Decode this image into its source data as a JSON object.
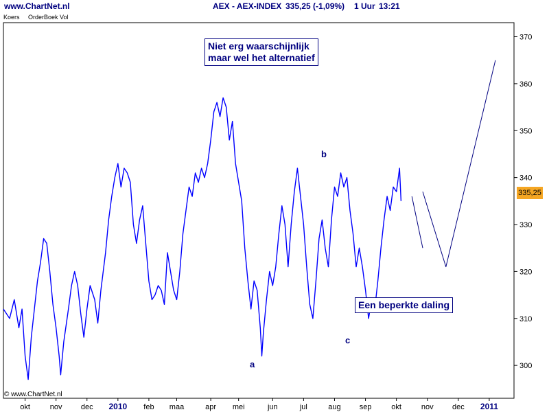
{
  "header": {
    "site": "www.ChartNet.nl",
    "instrument": "AEX - AEX-INDEX",
    "quote": "335,25 (-1,09%)",
    "interval": "1 Uur",
    "time": "13:21"
  },
  "tabs": [
    "Koers",
    "OrderBoek Vol"
  ],
  "copyright": "© www.ChartNet.nl",
  "annotations": {
    "box_alt": [
      "Niet erg waarschijnlijk",
      "maar wel het alternatief"
    ],
    "box_main": "Een beperkte daling",
    "wave_a": "a",
    "wave_b": "b",
    "wave_c": "c"
  },
  "price_tag": "335,25",
  "colors": {
    "series": "#0000ff",
    "text": "#000080",
    "price_tag": "#f5a623"
  },
  "chart_data": {
    "type": "line",
    "title": "",
    "xlabel": "",
    "ylabel": "",
    "ylim": [
      293,
      373
    ],
    "y_ticks": [
      300,
      310,
      320,
      330,
      340,
      350,
      360,
      370
    ],
    "y_axis_side": "right",
    "x_ticks": [
      {
        "label": "okt",
        "t": 0.7
      },
      {
        "label": "nov",
        "t": 1.7
      },
      {
        "label": "dec",
        "t": 2.7
      },
      {
        "label": "2010",
        "t": 3.7,
        "bold": true
      },
      {
        "label": "feb",
        "t": 4.7
      },
      {
        "label": "maa",
        "t": 5.6
      },
      {
        "label": "apr",
        "t": 6.7
      },
      {
        "label": "mei",
        "t": 7.6
      },
      {
        "label": "jun",
        "t": 8.7
      },
      {
        "label": "jul",
        "t": 9.7
      },
      {
        "label": "aug",
        "t": 10.7
      },
      {
        "label": "sep",
        "t": 11.7
      },
      {
        "label": "okt",
        "t": 12.7
      },
      {
        "label": "nov",
        "t": 13.7
      },
      {
        "label": "dec",
        "t": 14.7
      },
      {
        "label": "2011",
        "t": 15.7,
        "bold": true
      }
    ],
    "x_domain": [
      0,
      16.5
    ],
    "series": [
      {
        "values": [
          [
            0.0,
            312
          ],
          [
            0.2,
            310
          ],
          [
            0.35,
            314
          ],
          [
            0.5,
            308
          ],
          [
            0.6,
            312
          ],
          [
            0.7,
            302
          ],
          [
            0.8,
            297
          ],
          [
            0.9,
            306
          ],
          [
            1.0,
            312
          ],
          [
            1.1,
            318
          ],
          [
            1.2,
            322
          ],
          [
            1.3,
            327
          ],
          [
            1.4,
            326
          ],
          [
            1.5,
            320
          ],
          [
            1.6,
            313
          ],
          [
            1.7,
            308
          ],
          [
            1.8,
            302
          ],
          [
            1.85,
            298
          ],
          [
            1.95,
            305
          ],
          [
            2.1,
            312
          ],
          [
            2.2,
            317
          ],
          [
            2.3,
            320
          ],
          [
            2.4,
            317
          ],
          [
            2.5,
            311
          ],
          [
            2.6,
            306
          ],
          [
            2.7,
            312
          ],
          [
            2.8,
            317
          ],
          [
            2.95,
            314
          ],
          [
            3.05,
            309
          ],
          [
            3.15,
            316
          ],
          [
            3.3,
            324
          ],
          [
            3.4,
            331
          ],
          [
            3.5,
            336
          ],
          [
            3.6,
            340
          ],
          [
            3.7,
            343
          ],
          [
            3.8,
            338
          ],
          [
            3.9,
            342
          ],
          [
            4.0,
            341
          ],
          [
            4.1,
            339
          ],
          [
            4.2,
            330
          ],
          [
            4.3,
            326
          ],
          [
            4.4,
            331
          ],
          [
            4.5,
            334
          ],
          [
            4.6,
            326
          ],
          [
            4.7,
            318
          ],
          [
            4.8,
            314
          ],
          [
            4.9,
            315
          ],
          [
            5.0,
            317
          ],
          [
            5.1,
            316
          ],
          [
            5.2,
            313
          ],
          [
            5.3,
            324
          ],
          [
            5.4,
            320
          ],
          [
            5.5,
            316
          ],
          [
            5.6,
            314
          ],
          [
            5.7,
            320
          ],
          [
            5.8,
            328
          ],
          [
            5.9,
            333
          ],
          [
            6.0,
            338
          ],
          [
            6.1,
            336
          ],
          [
            6.2,
            341
          ],
          [
            6.3,
            339
          ],
          [
            6.4,
            342
          ],
          [
            6.5,
            340
          ],
          [
            6.6,
            343
          ],
          [
            6.7,
            348
          ],
          [
            6.8,
            354
          ],
          [
            6.9,
            356
          ],
          [
            7.0,
            353
          ],
          [
            7.1,
            357
          ],
          [
            7.2,
            355
          ],
          [
            7.3,
            348
          ],
          [
            7.4,
            352
          ],
          [
            7.5,
            343
          ],
          [
            7.6,
            339
          ],
          [
            7.7,
            335
          ],
          [
            7.8,
            325
          ],
          [
            7.9,
            318
          ],
          [
            8.0,
            312
          ],
          [
            8.1,
            318
          ],
          [
            8.2,
            316
          ],
          [
            8.3,
            308
          ],
          [
            8.35,
            302
          ],
          [
            8.4,
            307
          ],
          [
            8.5,
            314
          ],
          [
            8.6,
            320
          ],
          [
            8.7,
            317
          ],
          [
            8.8,
            321
          ],
          [
            8.9,
            328
          ],
          [
            9.0,
            334
          ],
          [
            9.1,
            330
          ],
          [
            9.2,
            321
          ],
          [
            9.3,
            330
          ],
          [
            9.4,
            337
          ],
          [
            9.5,
            342
          ],
          [
            9.6,
            336
          ],
          [
            9.7,
            330
          ],
          [
            9.8,
            321
          ],
          [
            9.9,
            313
          ],
          [
            10.0,
            310
          ],
          [
            10.1,
            318
          ],
          [
            10.2,
            327
          ],
          [
            10.3,
            331
          ],
          [
            10.4,
            325
          ],
          [
            10.5,
            321
          ],
          [
            10.6,
            331
          ],
          [
            10.7,
            338
          ],
          [
            10.8,
            336
          ],
          [
            10.9,
            341
          ],
          [
            11.0,
            338
          ],
          [
            11.1,
            340
          ],
          [
            11.2,
            333
          ],
          [
            11.3,
            328
          ],
          [
            11.4,
            321
          ],
          [
            11.5,
            325
          ],
          [
            11.6,
            321
          ],
          [
            11.7,
            316
          ],
          [
            11.8,
            310
          ],
          [
            11.9,
            314
          ],
          [
            12.0,
            312
          ],
          [
            12.1,
            318
          ],
          [
            12.2,
            325
          ],
          [
            12.3,
            331
          ],
          [
            12.4,
            336
          ],
          [
            12.5,
            333
          ],
          [
            12.6,
            338
          ],
          [
            12.7,
            337
          ],
          [
            12.8,
            342
          ],
          [
            12.85,
            335
          ]
        ]
      },
      {
        "name": "",
        "values": [
          [
            13.2,
            336
          ],
          [
            13.55,
            325
          ]
        ]
      },
      {
        "name": "",
        "values": [
          [
            13.55,
            337
          ],
          [
            14.3,
            321
          ],
          [
            15.9,
            365
          ]
        ]
      }
    ]
  }
}
